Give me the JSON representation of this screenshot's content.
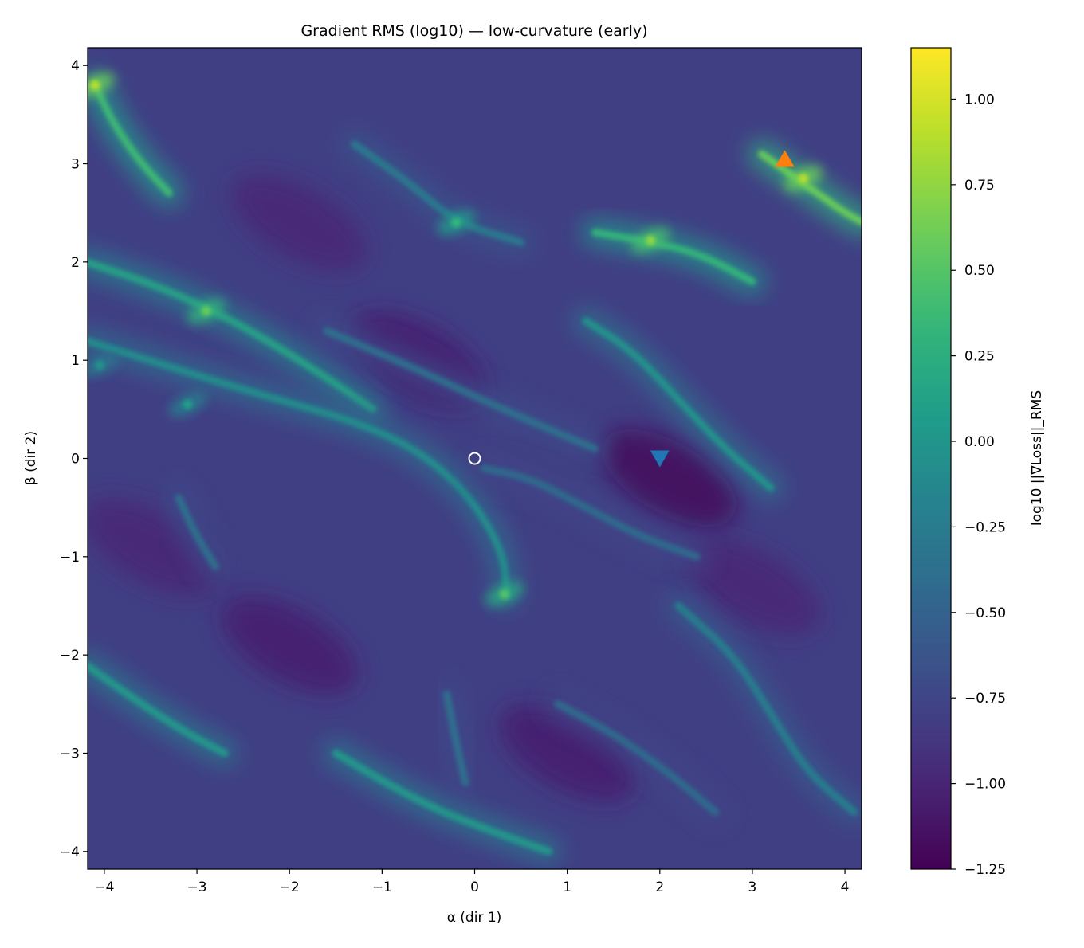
{
  "chart_data": {
    "type": "heatmap",
    "title": "Gradient RMS (log10) — low-curvature (early)",
    "xlabel": "α (dir 1)",
    "ylabel": "β (dir 2)",
    "xlim": [
      -4.18,
      4.18
    ],
    "ylim": [
      -4.18,
      4.18
    ],
    "x_ticks": [
      -4,
      -3,
      -2,
      -1,
      0,
      1,
      2,
      3,
      4
    ],
    "x_tick_labels": [
      "−4",
      "−3",
      "−2",
      "−1",
      "0",
      "1",
      "2",
      "3",
      "4"
    ],
    "y_ticks": [
      -4,
      -3,
      -2,
      -1,
      0,
      1,
      2,
      3,
      4
    ],
    "y_tick_labels": [
      "−4",
      "−3",
      "−2",
      "−1",
      "0",
      "1",
      "2",
      "3",
      "4"
    ],
    "colorbar": {
      "label": "log10 ||∇Loss||_RMS",
      "range": [
        -1.25,
        1.15
      ],
      "ticks": [
        -1.25,
        -1.0,
        -0.75,
        -0.5,
        -0.25,
        0.0,
        0.25,
        0.5,
        0.75,
        1.0
      ],
      "tick_labels": [
        "−1.25",
        "−1.00",
        "−0.75",
        "−0.50",
        "−0.25",
        "0.00",
        "0.25",
        "0.50",
        "0.75",
        "1.00"
      ],
      "colormap": "viridis"
    },
    "background_level": -0.8,
    "ridges": [
      {
        "points": [
          [
            -4.1,
            3.8
          ],
          [
            -3.9,
            3.4
          ],
          [
            -3.6,
            3.0
          ],
          [
            -3.3,
            2.7
          ]
        ],
        "level": 0.4
      },
      {
        "points": [
          [
            -4.2,
            2.0
          ],
          [
            -3.4,
            1.75
          ],
          [
            -2.6,
            1.4
          ],
          [
            -1.8,
            0.95
          ],
          [
            -1.1,
            0.5
          ]
        ],
        "level": 0.15
      },
      {
        "points": [
          [
            -4.2,
            1.2
          ],
          [
            -2.5,
            0.7
          ],
          [
            -1.0,
            0.3
          ],
          [
            -0.2,
            -0.2
          ],
          [
            0.3,
            -0.9
          ],
          [
            0.35,
            -1.4
          ]
        ],
        "level": -0.05
      },
      {
        "points": [
          [
            -4.2,
            -2.1
          ],
          [
            -3.6,
            -2.5
          ],
          [
            -3.1,
            -2.8
          ],
          [
            -2.7,
            -3.0
          ]
        ],
        "level": 0.05
      },
      {
        "points": [
          [
            -1.5,
            -3.0
          ],
          [
            -0.6,
            -3.5
          ],
          [
            0.2,
            -3.8
          ],
          [
            0.8,
            -4.0
          ]
        ],
        "level": 0.05
      },
      {
        "points": [
          [
            1.3,
            2.3
          ],
          [
            1.8,
            2.22
          ],
          [
            2.4,
            2.1
          ],
          [
            3.0,
            1.8
          ]
        ],
        "level": 0.35
      },
      {
        "points": [
          [
            3.1,
            3.1
          ],
          [
            3.4,
            2.9
          ],
          [
            3.7,
            2.7
          ],
          [
            4.0,
            2.5
          ],
          [
            4.2,
            2.4
          ]
        ],
        "level": 0.6
      },
      {
        "points": [
          [
            1.2,
            1.4
          ],
          [
            1.7,
            1.1
          ],
          [
            2.2,
            0.6
          ],
          [
            2.7,
            0.1
          ],
          [
            3.2,
            -0.3
          ]
        ],
        "level": 0.0
      },
      {
        "points": [
          [
            -1.6,
            1.3
          ],
          [
            -0.6,
            0.9
          ],
          [
            0.3,
            0.5
          ],
          [
            1.3,
            0.1
          ]
        ],
        "level": -0.35
      },
      {
        "points": [
          [
            0.1,
            -0.1
          ],
          [
            0.6,
            -0.2
          ],
          [
            1.2,
            -0.5
          ],
          [
            1.8,
            -0.8
          ],
          [
            2.4,
            -1.0
          ]
        ],
        "level": -0.4
      },
      {
        "points": [
          [
            -3.2,
            -0.4
          ],
          [
            -3.0,
            -0.8
          ],
          [
            -2.8,
            -1.1
          ]
        ],
        "level": -0.35
      },
      {
        "points": [
          [
            -0.3,
            -2.4
          ],
          [
            -0.2,
            -2.9
          ],
          [
            -0.1,
            -3.3
          ]
        ],
        "level": -0.35
      },
      {
        "points": [
          [
            -1.3,
            3.2
          ],
          [
            -0.7,
            2.8
          ],
          [
            -0.2,
            2.4
          ],
          [
            0.5,
            2.2
          ]
        ],
        "level": -0.25
      },
      {
        "points": [
          [
            2.2,
            -1.5
          ],
          [
            2.8,
            -2.0
          ],
          [
            3.2,
            -2.6
          ],
          [
            3.6,
            -3.2
          ],
          [
            4.1,
            -3.6
          ]
        ],
        "level": -0.2
      },
      {
        "points": [
          [
            0.9,
            -2.5
          ],
          [
            1.5,
            -2.8
          ],
          [
            2.1,
            -3.2
          ],
          [
            2.6,
            -3.6
          ]
        ],
        "level": -0.4
      }
    ],
    "hotspots": [
      {
        "x": -4.1,
        "y": 3.8,
        "level": 0.9
      },
      {
        "x": -2.9,
        "y": 1.5,
        "level": 0.6
      },
      {
        "x": 0.32,
        "y": -1.38,
        "level": 0.5
      },
      {
        "x": 1.9,
        "y": 2.22,
        "level": 0.75
      },
      {
        "x": 3.55,
        "y": 2.85,
        "level": 0.9
      },
      {
        "x": -0.2,
        "y": 2.4,
        "level": 0.35
      },
      {
        "x": -3.1,
        "y": 0.55,
        "level": 0.1
      },
      {
        "x": -4.05,
        "y": 0.95,
        "level": 0.0
      }
    ],
    "lows": [
      {
        "x": 2.1,
        "y": -0.2,
        "level": -1.2
      },
      {
        "x": -2.0,
        "y": -1.9,
        "level": -1.05
      },
      {
        "x": -3.5,
        "y": -0.9,
        "level": -1.0
      },
      {
        "x": -0.6,
        "y": 1.0,
        "level": -1.05
      },
      {
        "x": -1.9,
        "y": 2.4,
        "level": -1.0
      },
      {
        "x": 1.0,
        "y": -3.0,
        "level": -1.05
      },
      {
        "x": 3.0,
        "y": -1.3,
        "level": -1.0
      }
    ],
    "markers": [
      {
        "shape": "circle",
        "x": 0.0,
        "y": 0.0,
        "color": "#ffffff"
      },
      {
        "shape": "triangle-down",
        "x": 2.0,
        "y": 0.0,
        "color": "#1f77b4"
      },
      {
        "shape": "triangle-up",
        "x": 3.35,
        "y": 3.05,
        "color": "#ff7f0e"
      }
    ]
  }
}
